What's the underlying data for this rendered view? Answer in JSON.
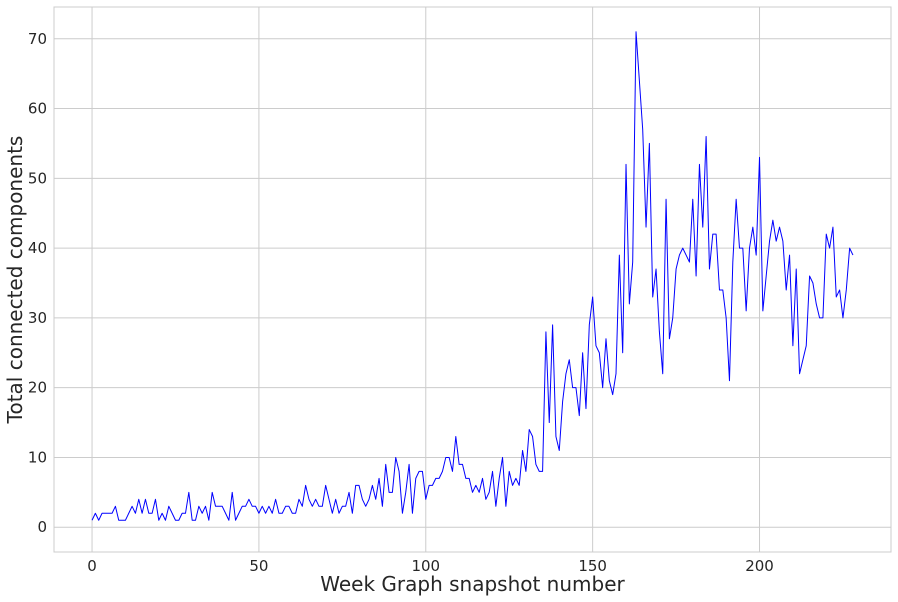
{
  "chart_data": {
    "type": "line",
    "title": "",
    "xlabel": "Week Graph snapshot number",
    "ylabel": "Total connected components",
    "xlim": [
      -11.4,
      239.4
    ],
    "ylim": [
      -3.55,
      74.55
    ],
    "xticks": [
      0,
      50,
      100,
      150,
      200
    ],
    "yticks": [
      0,
      10,
      20,
      30,
      40,
      50,
      60,
      70
    ],
    "grid": true,
    "legend": "none",
    "colors": {
      "series": "#0000ff",
      "grid": "#cccccc",
      "text": "#262626"
    },
    "series": [
      {
        "values": [
          1,
          2,
          1,
          2,
          2,
          2,
          2,
          3,
          1,
          1,
          1,
          2,
          3,
          2,
          4,
          2,
          4,
          2,
          2,
          4,
          1,
          2,
          1,
          3,
          2,
          1,
          1,
          2,
          2,
          5,
          1,
          1,
          3,
          2,
          3,
          1,
          5,
          3,
          3,
          3,
          2,
          1,
          5,
          1,
          2,
          3,
          3,
          4,
          3,
          3,
          2,
          3,
          2,
          3,
          2,
          4,
          2,
          2,
          3,
          3,
          2,
          2,
          4,
          3,
          6,
          4,
          3,
          4,
          3,
          3,
          6,
          4,
          2,
          4,
          2,
          3,
          3,
          5,
          2,
          6,
          6,
          4,
          3,
          4,
          6,
          4,
          7,
          3,
          9,
          5,
          5,
          10,
          8,
          2,
          5,
          9,
          2,
          7,
          8,
          8,
          4,
          6,
          6,
          7,
          7,
          8,
          10,
          10,
          8,
          13,
          9,
          9,
          7,
          7,
          5,
          6,
          5,
          7,
          4,
          5,
          8,
          3,
          7,
          10,
          3,
          8,
          6,
          7,
          6,
          11,
          8,
          14,
          13,
          9,
          8,
          8,
          28,
          15,
          29,
          13,
          11,
          18,
          22,
          24,
          20,
          20,
          16,
          25,
          17,
          29,
          33,
          26,
          25,
          20,
          27,
          21,
          19,
          22,
          39,
          25,
          52,
          32,
          38,
          71,
          64,
          57,
          43,
          55,
          33,
          37,
          28,
          22,
          47,
          27,
          30,
          37,
          39,
          40,
          39,
          38,
          47,
          36,
          52,
          43,
          56,
          37,
          42,
          42,
          34,
          34,
          30,
          21,
          38,
          47,
          40,
          40,
          31,
          40,
          43,
          39,
          53,
          31,
          36,
          41,
          44,
          41,
          43,
          41,
          34,
          39,
          26,
          37,
          22,
          24,
          26,
          36,
          35,
          32,
          30,
          30,
          42,
          40,
          43,
          33,
          34,
          30,
          34,
          40,
          39
        ]
      }
    ]
  }
}
